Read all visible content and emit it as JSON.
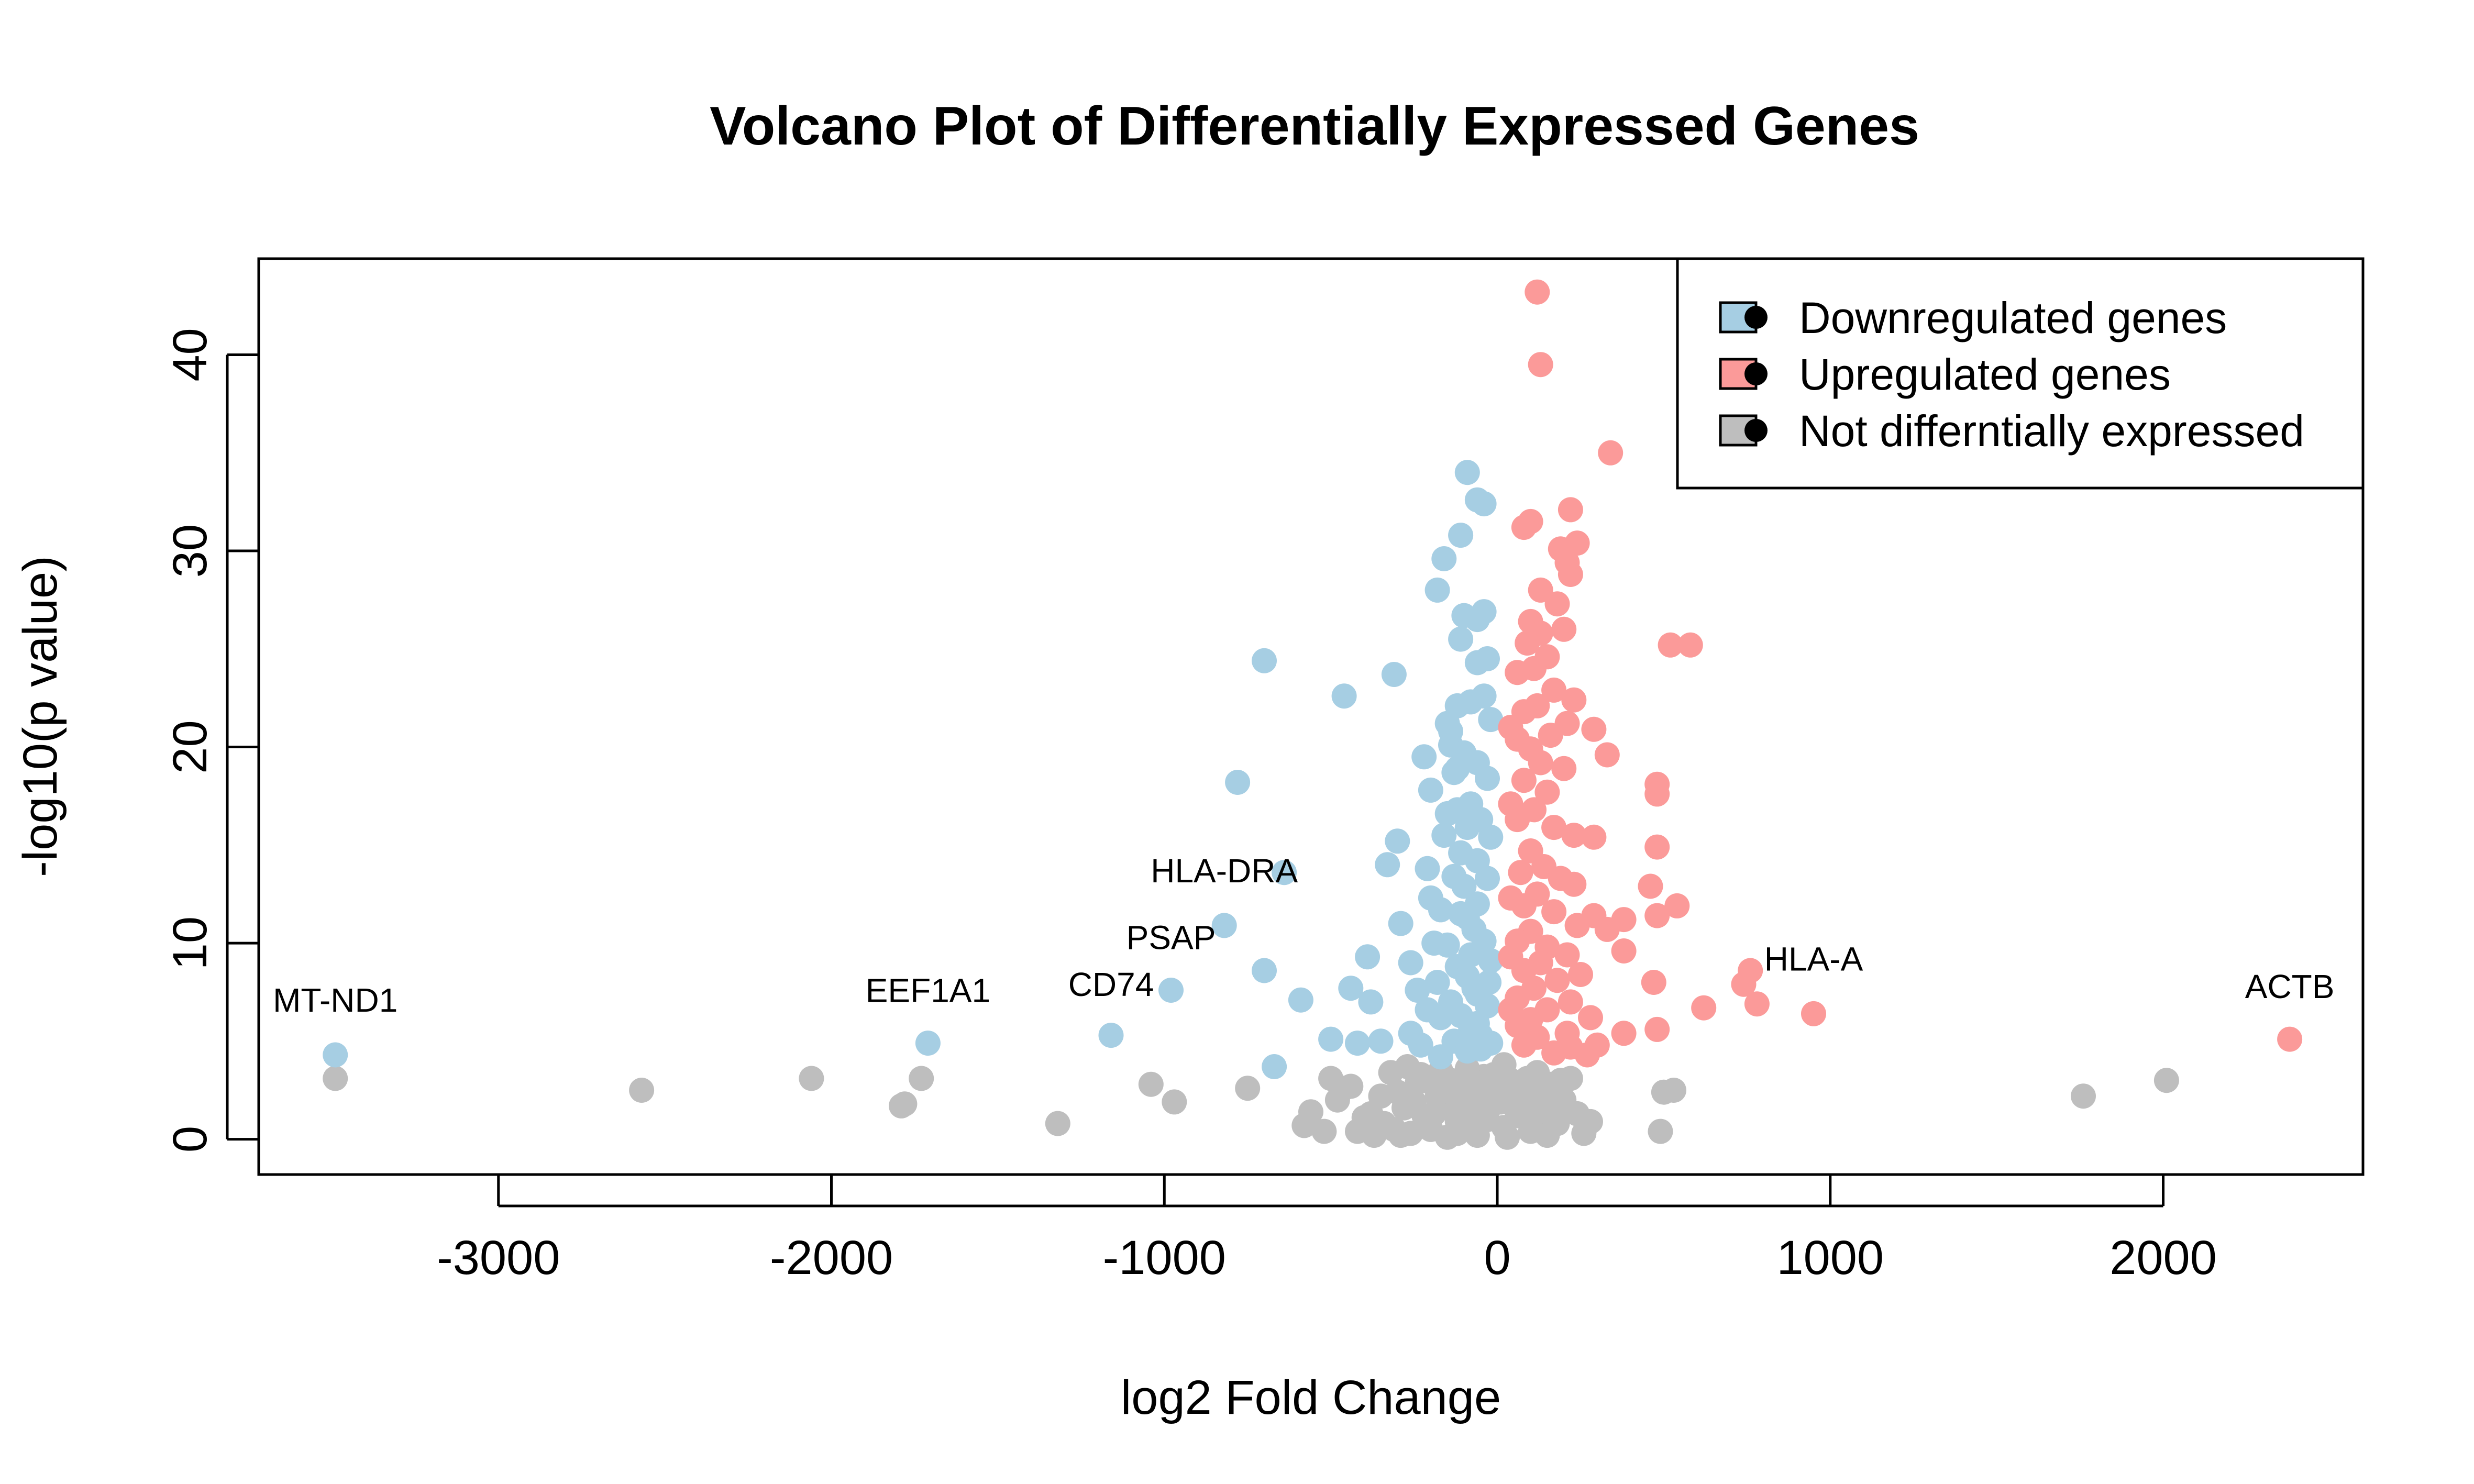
{
  "chart_data": {
    "type": "scatter",
    "title": "Volcano Plot of Differentially Expressed Genes",
    "xlabel": "log2 Fold Change",
    "ylabel": "-log10(p value)",
    "xlim": [
      -3720,
      2600
    ],
    "ylim": [
      -1.8,
      44.9
    ],
    "xticks": [
      -3000,
      -2000,
      -1000,
      0,
      1000,
      2000
    ],
    "xtick_labels": [
      "-3000",
      "-2000",
      "-1000",
      "0",
      "1000",
      "2000"
    ],
    "yticks": [
      0,
      10,
      20,
      30,
      40
    ],
    "ytick_labels": [
      "0",
      "10",
      "20",
      "30",
      "40"
    ],
    "grid": false,
    "legend_position": "top-right",
    "series": [
      {
        "name": "Downregulated genes",
        "color": "#A6CEE3",
        "points": [
          [
            -3490,
            4.3
          ],
          [
            -1710,
            4.9
          ],
          [
            -1160,
            5.3
          ],
          [
            -980,
            7.6
          ],
          [
            -820,
            10.9
          ],
          [
            -640,
            13.6
          ],
          [
            -700,
            8.6
          ],
          [
            -670,
            3.7
          ],
          [
            -780,
            18.2
          ],
          [
            -700,
            24.4
          ],
          [
            -460,
            22.6
          ],
          [
            -310,
            23.7
          ],
          [
            -590,
            7.1
          ],
          [
            -500,
            5.1
          ],
          [
            -440,
            7.7
          ],
          [
            -420,
            4.9
          ],
          [
            -390,
            9.3
          ],
          [
            -380,
            7.0
          ],
          [
            -350,
            5.0
          ],
          [
            -330,
            14.0
          ],
          [
            -300,
            15.2
          ],
          [
            -290,
            11.0
          ],
          [
            -260,
            9.0
          ],
          [
            -240,
            7.6
          ],
          [
            -230,
            4.8
          ],
          [
            -220,
            19.5
          ],
          [
            -210,
            13.8
          ],
          [
            -200,
            12.3
          ],
          [
            -190,
            10.0
          ],
          [
            -180,
            8.0
          ],
          [
            -170,
            6.2
          ],
          [
            -160,
            15.5
          ],
          [
            -150,
            21.2
          ],
          [
            -140,
            20.1
          ],
          [
            -130,
            18.7
          ],
          [
            -120,
            16.8
          ],
          [
            -110,
            14.6
          ],
          [
            -100,
            12.9
          ],
          [
            -90,
            11.3
          ],
          [
            -80,
            9.4
          ],
          [
            -70,
            7.7
          ],
          [
            -60,
            5.9
          ],
          [
            -50,
            4.6
          ],
          [
            -180,
            28.0
          ],
          [
            -160,
            29.6
          ],
          [
            -110,
            30.8
          ],
          [
            -90,
            34.0
          ],
          [
            -60,
            32.6
          ],
          [
            -40,
            32.4
          ],
          [
            -100,
            26.7
          ],
          [
            -60,
            26.5
          ],
          [
            -40,
            26.9
          ],
          [
            -110,
            25.5
          ],
          [
            -60,
            24.3
          ],
          [
            -30,
            24.5
          ],
          [
            -120,
            22.1
          ],
          [
            -80,
            22.3
          ],
          [
            -40,
            22.6
          ],
          [
            -20,
            21.4
          ],
          [
            -140,
            20.8
          ],
          [
            -100,
            19.7
          ],
          [
            -60,
            19.2
          ],
          [
            -30,
            18.4
          ],
          [
            -120,
            18.9
          ],
          [
            -80,
            17.1
          ],
          [
            -50,
            16.3
          ],
          [
            -20,
            15.4
          ],
          [
            -90,
            15.9
          ],
          [
            -60,
            14.2
          ],
          [
            -30,
            13.3
          ],
          [
            -130,
            13.4
          ],
          [
            -110,
            11.5
          ],
          [
            -70,
            10.7
          ],
          [
            -40,
            10.1
          ],
          [
            -20,
            9.1
          ],
          [
            -150,
            9.9
          ],
          [
            -120,
            8.8
          ],
          [
            -90,
            8.3
          ],
          [
            -60,
            7.4
          ],
          [
            -30,
            6.8
          ],
          [
            -140,
            7.0
          ],
          [
            -110,
            6.3
          ],
          [
            -80,
            5.6
          ],
          [
            -50,
            5.3
          ],
          [
            -20,
            4.9
          ],
          [
            -260,
            5.4
          ],
          [
            -210,
            6.6
          ],
          [
            -170,
            11.7
          ],
          [
            -130,
            5.0
          ],
          [
            -200,
            17.8
          ],
          [
            -170,
            4.2
          ],
          [
            -150,
            16.6
          ],
          [
            -90,
            4.5
          ],
          [
            -60,
            12.0
          ],
          [
            -25,
            8.0
          ]
        ]
      },
      {
        "name": "Upregulated genes",
        "color": "#FB9A99",
        "points": [
          [
            2380,
            5.1
          ],
          [
            950,
            6.4
          ],
          [
            760,
            8.6
          ],
          [
            780,
            6.9
          ],
          [
            740,
            7.9
          ],
          [
            620,
            6.7
          ],
          [
            480,
            5.6
          ],
          [
            380,
            5.4
          ],
          [
            300,
            4.8
          ],
          [
            270,
            4.3
          ],
          [
            120,
            43.2
          ],
          [
            130,
            39.5
          ],
          [
            340,
            35.0
          ],
          [
            220,
            32.1
          ],
          [
            100,
            31.5
          ],
          [
            240,
            30.4
          ],
          [
            190,
            30.1
          ],
          [
            210,
            29.4
          ],
          [
            220,
            28.8
          ],
          [
            80,
            31.2
          ],
          [
            130,
            28.0
          ],
          [
            180,
            27.3
          ],
          [
            100,
            26.4
          ],
          [
            200,
            26.0
          ],
          [
            130,
            25.8
          ],
          [
            90,
            25.3
          ],
          [
            520,
            25.2
          ],
          [
            580,
            25.2
          ],
          [
            150,
            24.6
          ],
          [
            110,
            24.0
          ],
          [
            60,
            23.8
          ],
          [
            170,
            22.9
          ],
          [
            230,
            22.4
          ],
          [
            120,
            22.1
          ],
          [
            80,
            21.8
          ],
          [
            210,
            21.2
          ],
          [
            160,
            20.6
          ],
          [
            290,
            20.9
          ],
          [
            60,
            20.4
          ],
          [
            100,
            19.9
          ],
          [
            330,
            19.6
          ],
          [
            130,
            19.2
          ],
          [
            200,
            18.9
          ],
          [
            480,
            18.1
          ],
          [
            480,
            17.6
          ],
          [
            80,
            18.3
          ],
          [
            150,
            17.7
          ],
          [
            110,
            16.8
          ],
          [
            60,
            16.3
          ],
          [
            170,
            15.9
          ],
          [
            230,
            15.5
          ],
          [
            290,
            15.4
          ],
          [
            480,
            14.9
          ],
          [
            100,
            14.7
          ],
          [
            140,
            13.9
          ],
          [
            70,
            13.6
          ],
          [
            190,
            13.3
          ],
          [
            230,
            13.0
          ],
          [
            460,
            12.9
          ],
          [
            540,
            11.9
          ],
          [
            120,
            12.5
          ],
          [
            80,
            11.9
          ],
          [
            170,
            11.6
          ],
          [
            290,
            11.4
          ],
          [
            380,
            11.2
          ],
          [
            480,
            11.4
          ],
          [
            330,
            10.7
          ],
          [
            240,
            10.9
          ],
          [
            100,
            10.6
          ],
          [
            60,
            10.1
          ],
          [
            150,
            9.8
          ],
          [
            210,
            9.4
          ],
          [
            380,
            9.6
          ],
          [
            130,
            9.0
          ],
          [
            80,
            8.6
          ],
          [
            250,
            8.4
          ],
          [
            470,
            8.0
          ],
          [
            180,
            8.1
          ],
          [
            110,
            7.7
          ],
          [
            60,
            7.2
          ],
          [
            220,
            7.0
          ],
          [
            150,
            6.6
          ],
          [
            100,
            6.1
          ],
          [
            280,
            6.2
          ],
          [
            60,
            5.8
          ],
          [
            210,
            5.4
          ],
          [
            120,
            5.2
          ],
          [
            220,
            4.7
          ],
          [
            170,
            4.4
          ],
          [
            80,
            4.8
          ],
          [
            40,
            12.3
          ],
          [
            40,
            17.1
          ],
          [
            40,
            21.0
          ],
          [
            40,
            9.3
          ],
          [
            40,
            6.6
          ]
        ]
      },
      {
        "name": "Not differntially expressed",
        "color": "#BEBEBE",
        "points": [
          [
            -3490,
            3.1
          ],
          [
            -2570,
            2.5
          ],
          [
            -2060,
            3.1
          ],
          [
            -1790,
            1.7
          ],
          [
            -1780,
            1.8
          ],
          [
            -1730,
            3.1
          ],
          [
            -1320,
            0.8
          ],
          [
            -1040,
            2.8
          ],
          [
            -970,
            1.9
          ],
          [
            -750,
            2.6
          ],
          [
            -580,
            0.7
          ],
          [
            -560,
            1.4
          ],
          [
            -520,
            0.4
          ],
          [
            -500,
            3.1
          ],
          [
            -480,
            2.0
          ],
          [
            -460,
            2.6
          ],
          [
            -420,
            0.4
          ],
          [
            -400,
            1.1
          ],
          [
            -370,
            0.2
          ],
          [
            -340,
            0.8
          ],
          [
            -320,
            3.4
          ],
          [
            -300,
            2.4
          ],
          [
            -280,
            1.6
          ],
          [
            -260,
            0.3
          ],
          [
            -240,
            2.9
          ],
          [
            -220,
            1.2
          ],
          [
            -200,
            0.5
          ],
          [
            -180,
            2.2
          ],
          [
            -160,
            1.8
          ],
          [
            -140,
            3.0
          ],
          [
            -120,
            0.9
          ],
          [
            -100,
            2.6
          ],
          [
            -80,
            1.4
          ],
          [
            -60,
            0.2
          ],
          [
            -40,
            3.2
          ],
          [
            -20,
            1.7
          ],
          [
            0,
            2.4
          ],
          [
            20,
            0.6
          ],
          [
            40,
            3.0
          ],
          [
            60,
            1.2
          ],
          [
            80,
            2.1
          ],
          [
            100,
            0.4
          ],
          [
            120,
            3.4
          ],
          [
            140,
            1.5
          ],
          [
            160,
            2.8
          ],
          [
            180,
            0.8
          ],
          [
            200,
            2.0
          ],
          [
            220,
            3.1
          ],
          [
            240,
            1.3
          ],
          [
            260,
            0.3
          ],
          [
            280,
            0.9
          ],
          [
            490,
            0.4
          ],
          [
            500,
            2.4
          ],
          [
            530,
            2.5
          ],
          [
            1760,
            2.2
          ],
          [
            2010,
            3.0
          ],
          [
            -290,
            0.2
          ],
          [
            -250,
            1.9
          ],
          [
            -230,
            3.3
          ],
          [
            -210,
            0.8
          ],
          [
            -190,
            1.3
          ],
          [
            -170,
            3.5
          ],
          [
            -150,
            0.1
          ],
          [
            -130,
            2.3
          ],
          [
            -110,
            1.1
          ],
          [
            -90,
            3.6
          ],
          [
            -70,
            0.6
          ],
          [
            -50,
            2.0
          ],
          [
            -30,
            1.0
          ],
          [
            -10,
            3.3
          ],
          [
            10,
            1.9
          ],
          [
            30,
            0.1
          ],
          [
            50,
            2.7
          ],
          [
            70,
            1.6
          ],
          [
            90,
            3.1
          ],
          [
            110,
            0.9
          ],
          [
            130,
            2.3
          ],
          [
            150,
            0.2
          ],
          [
            170,
            1.5
          ],
          [
            190,
            3.0
          ],
          [
            -440,
            2.7
          ],
          [
            -380,
            1.3
          ],
          [
            -350,
            2.2
          ],
          [
            -310,
            0.5
          ],
          [
            -270,
            3.7
          ],
          [
            -200,
            2.9
          ],
          [
            -120,
            0.3
          ],
          [
            -60,
            2.7
          ],
          [
            20,
            3.8
          ],
          [
            90,
            1.9
          ]
        ]
      }
    ],
    "annotations": [
      {
        "text": "MT-ND1",
        "x": -3490,
        "y": 6.5
      },
      {
        "text": "EEF1A1",
        "x": -1710,
        "y": 7.0
      },
      {
        "text": "CD74",
        "x": -1160,
        "y": 7.3
      },
      {
        "text": "PSAP",
        "x": -980,
        "y": 9.7
      },
      {
        "text": "HLA-DRA",
        "x": -820,
        "y": 13.1
      },
      {
        "text": "HLA-A",
        "x": 950,
        "y": 8.6
      },
      {
        "text": "ACTB",
        "x": 2380,
        "y": 7.2
      }
    ]
  }
}
